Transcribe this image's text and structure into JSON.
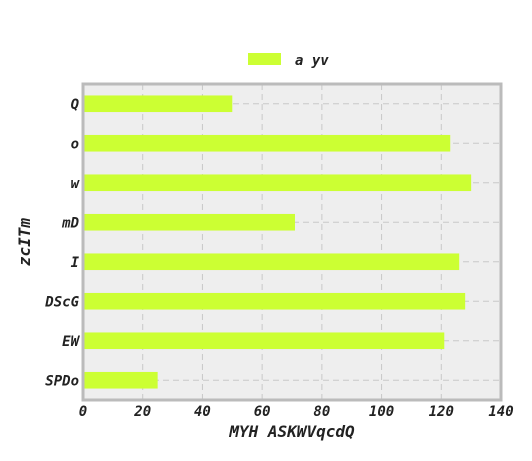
{
  "chart_data": {
    "type": "bar",
    "orientation": "horizontal",
    "title": "",
    "xlabel": "MYH ASKWVqcdQ",
    "ylabel": "zcITm",
    "categories": [
      "Q",
      "o",
      "w",
      "mD",
      "I",
      "DScG",
      "EW",
      "SPDo"
    ],
    "series": [
      {
        "name": "a yv",
        "values": [
          50,
          123,
          130,
          71,
          126,
          128,
          121,
          25
        ]
      }
    ],
    "xlim": [
      0,
      140
    ],
    "xticks": [
      0,
      20,
      40,
      60,
      80,
      100,
      120,
      140
    ],
    "grid": true,
    "legend_position": "top-center",
    "colors": {
      "bar": "#ccff33",
      "plot_background": "#eeeeee",
      "frame": "#bbbbbb",
      "grid": "#c8c8c8"
    }
  }
}
